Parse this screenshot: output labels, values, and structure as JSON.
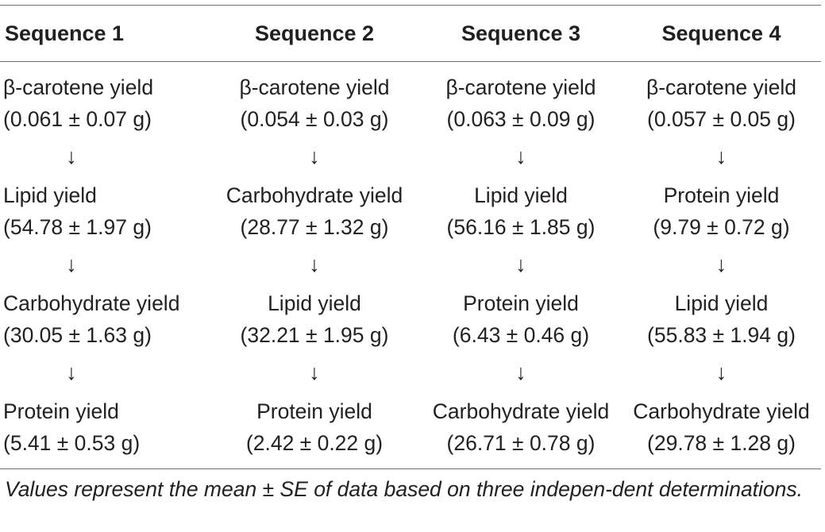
{
  "table": {
    "headers": [
      "Sequence 1",
      "Sequence 2",
      "Sequence 3",
      "Sequence 4"
    ],
    "arrow": "↓",
    "steps": [
      [
        {
          "label": "β-carotene yield",
          "value": "(0.061 ± 0.07 g)"
        },
        {
          "label": "β-carotene yield",
          "value": "(0.054 ± 0.03 g)"
        },
        {
          "label": "β-carotene yield",
          "value": "(0.063 ± 0.09 g)"
        },
        {
          "label": "β-carotene yield",
          "value": "(0.057 ± 0.05 g)"
        }
      ],
      [
        {
          "label": "Lipid yield",
          "value": "(54.78 ± 1.97 g)"
        },
        {
          "label": "Carbohydrate yield",
          "value": "(28.77 ± 1.32 g)"
        },
        {
          "label": "Lipid yield",
          "value": "(56.16 ± 1.85 g)"
        },
        {
          "label": "Protein yield",
          "value": "(9.79 ± 0.72 g)"
        }
      ],
      [
        {
          "label": "Carbohydrate yield",
          "value": "(30.05 ± 1.63 g)"
        },
        {
          "label": "Lipid yield",
          "value": "(32.21 ± 1.95 g)"
        },
        {
          "label": "Protein yield",
          "value": "(6.43 ± 0.46 g)"
        },
        {
          "label": "Lipid yield",
          "value": "(55.83 ± 1.94 g)"
        }
      ],
      [
        {
          "label": "Protein yield",
          "value": "(5.41 ± 0.53 g)"
        },
        {
          "label": "Protein yield",
          "value": "(2.42 ± 0.22 g)"
        },
        {
          "label": "Carbohydrate yield",
          "value": "(26.71 ± 0.78 g)"
        },
        {
          "label": "Carbohydrate yield",
          "value": "(29.78 ± 1.28 g)"
        }
      ]
    ]
  },
  "footnote": "Values represent the mean ± SE of data based on three indepen-dent determinations."
}
